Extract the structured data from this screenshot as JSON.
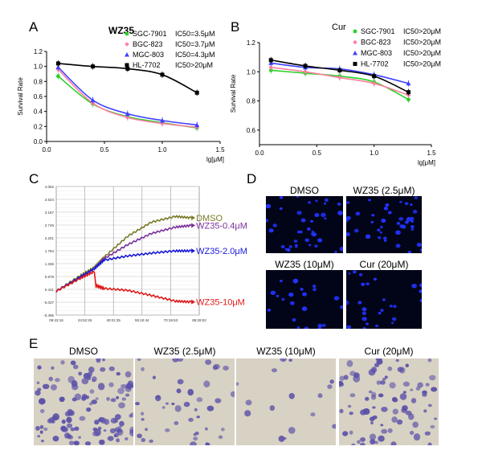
{
  "panel_labels": {
    "a": "A",
    "b": "B",
    "c": "C",
    "d": "D",
    "e": "E"
  },
  "colors": {
    "red": "#e8283a",
    "pink": "#ff7fa0",
    "green": "#29d129",
    "blue": "#4040ff",
    "purple": "#8a2be2",
    "black": "#000000",
    "olive": "#7a7a28",
    "violet": "#7b2f9c",
    "deep_blue": "#1818d8",
    "deep_red": "#e01818",
    "nuclei": "#2233ff",
    "stain": "#5a50a8"
  },
  "chart_data": [
    {
      "type": "scatter",
      "panel": "A",
      "title": "WZ35",
      "ylabel": "Survival Rate",
      "xlabel": "lg[μM]",
      "xlim": [
        0.0,
        1.5
      ],
      "ylim": [
        0.0,
        1.2
      ],
      "xticks": [
        "0.0",
        "0.5",
        "1.0",
        "1.5"
      ],
      "yticks": [
        "0.0",
        "0.2",
        "0.4",
        "0.6",
        "0.8",
        "1.0",
        "1.2"
      ],
      "x": [
        0.1,
        0.4,
        0.7,
        1.0,
        1.3
      ],
      "legend_position": "top-right",
      "series": [
        {
          "name": "SGC-7901",
          "ic50": "IC50=3.5μM",
          "color": "#29d129",
          "values": [
            0.87,
            0.5,
            0.33,
            0.25,
            0.18
          ]
        },
        {
          "name": "BGC-823",
          "ic50": "IC50=3.7μM",
          "color": "#ff7fa0",
          "values": [
            0.96,
            0.51,
            0.32,
            0.24,
            0.19
          ]
        },
        {
          "name": "MGC-803",
          "ic50": "IC50=4.3μM",
          "color": "#4040ff",
          "values": [
            0.99,
            0.55,
            0.37,
            0.28,
            0.22
          ]
        },
        {
          "name": "HL-7702",
          "ic50": "IC50>20μM",
          "color": "#000000",
          "values": [
            1.04,
            1.0,
            0.97,
            0.89,
            0.65
          ]
        }
      ]
    },
    {
      "type": "scatter",
      "panel": "B",
      "title": "Cur",
      "ylabel": "Survival Rate",
      "xlabel": "lg[μM]",
      "xlim": [
        0.0,
        1.5
      ],
      "ylim": [
        0.5,
        1.2
      ],
      "xticks": [
        "0.0",
        "0.5",
        "1.0",
        "1.5"
      ],
      "yticks": [
        "0.6",
        "0.8",
        "1.0",
        "1.2"
      ],
      "x": [
        0.1,
        0.4,
        0.7,
        1.0,
        1.3
      ],
      "legend_position": "top-right",
      "series": [
        {
          "name": "SGC-7901",
          "ic50": "IC50>20μM",
          "color": "#29d129",
          "values": [
            1.01,
            0.99,
            0.97,
            0.93,
            0.81
          ]
        },
        {
          "name": "BGC-823",
          "ic50": "IC50>20μM",
          "color": "#ff7fa0",
          "values": [
            1.03,
            1.0,
            0.96,
            0.92,
            0.84
          ]
        },
        {
          "name": "MGC-803",
          "ic50": "IC50>20μM",
          "color": "#4040ff",
          "values": [
            1.06,
            1.03,
            1.02,
            0.98,
            0.92
          ]
        },
        {
          "name": "HL-7702",
          "ic50": "IC50>20μM",
          "color": "#000000",
          "values": [
            1.08,
            1.04,
            1.01,
            0.97,
            0.86
          ]
        }
      ]
    },
    {
      "type": "line",
      "panel": "C",
      "ylim": [
        -0.495,
        4.062
      ],
      "yticks": [
        "4.062",
        "3.624",
        "3.187",
        "2.749",
        "2.201",
        "1.794",
        "1.336",
        "0.878",
        "0.431",
        "-0.037",
        "-0.495"
      ],
      "xticks": [
        "09:43:16",
        "24:52:26",
        "40:01:35",
        "55:10:44",
        "70:19:53",
        "85:29:02"
      ],
      "series": [
        {
          "name": "DMSO",
          "color": "#7a7a28",
          "t": [
            0,
            15,
            24,
            30,
            45,
            60,
            75,
            85
          ],
          "values": [
            0.35,
            0.9,
            1.2,
            1.55,
            2.3,
            2.8,
            3.0,
            2.95
          ]
        },
        {
          "name": "WZ35-0.4μM",
          "color": "#7b2f9c",
          "t": [
            0,
            15,
            24,
            30,
            45,
            60,
            75,
            85
          ],
          "values": [
            0.35,
            0.85,
            1.15,
            1.5,
            2.0,
            2.4,
            2.62,
            2.68
          ]
        },
        {
          "name": "WZ35-2.0μM",
          "color": "#1818d8",
          "t": [
            0,
            15,
            24,
            30,
            45,
            60,
            75,
            85
          ],
          "values": [
            0.35,
            0.85,
            1.15,
            1.45,
            1.6,
            1.7,
            1.78,
            1.78
          ]
        },
        {
          "name": "WZ35-10μM",
          "color": "#e01818",
          "t": [
            0,
            15,
            24,
            25,
            30,
            45,
            60,
            75,
            85
          ],
          "values": [
            0.35,
            0.8,
            1.05,
            0.55,
            0.45,
            0.38,
            0.2,
            0.0,
            -0.03
          ]
        }
      ]
    }
  ],
  "panel_d": {
    "captions": [
      "DMSO",
      "WZ35 (2.5μM)",
      "WZ35 (10μM)",
      "Cur (20μM)"
    ]
  },
  "panel_e": {
    "captions": [
      "DMSO",
      "WZ35 (2.5μM)",
      "WZ35 (10μM)",
      "Cur (20μM)"
    ]
  }
}
